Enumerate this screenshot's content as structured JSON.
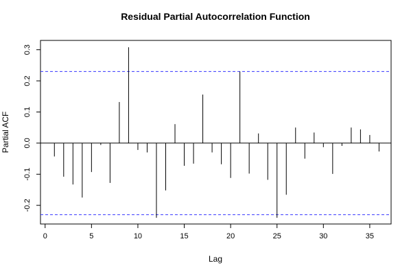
{
  "chart_data": {
    "type": "bar",
    "title": "Residual Partial Autocorrelation Function",
    "xlabel": "Lag",
    "ylabel": "Partial ACF",
    "xlim": [
      -0.5,
      37.3
    ],
    "ylim": [
      -0.26,
      0.33
    ],
    "x_ticks": [
      0,
      5,
      10,
      15,
      20,
      25,
      30,
      35
    ],
    "y_ticks": [
      -0.2,
      -0.1,
      0.0,
      0.1,
      0.2,
      0.3
    ],
    "y_tick_labels": [
      "-0.2",
      "-0.1",
      "0.0",
      "0.1",
      "0.2",
      "0.3"
    ],
    "confidence_band": 0.23,
    "confidence_color": "#3333ff",
    "lags": [
      1,
      2,
      3,
      4,
      5,
      6,
      7,
      8,
      9,
      10,
      11,
      12,
      13,
      14,
      15,
      16,
      17,
      18,
      19,
      20,
      21,
      22,
      23,
      24,
      25,
      26,
      27,
      28,
      29,
      30,
      31,
      32,
      33,
      34,
      35,
      36
    ],
    "values": [
      -0.043,
      -0.108,
      -0.133,
      -0.175,
      -0.093,
      -0.006,
      -0.128,
      0.132,
      0.308,
      -0.022,
      -0.03,
      -0.24,
      -0.152,
      0.061,
      -0.073,
      -0.066,
      0.156,
      -0.03,
      -0.068,
      -0.112,
      0.23,
      -0.098,
      0.031,
      -0.118,
      -0.24,
      -0.166,
      0.05,
      -0.05,
      0.034,
      -0.013,
      -0.099,
      -0.009,
      0.05,
      0.044,
      0.026,
      -0.027
    ]
  }
}
